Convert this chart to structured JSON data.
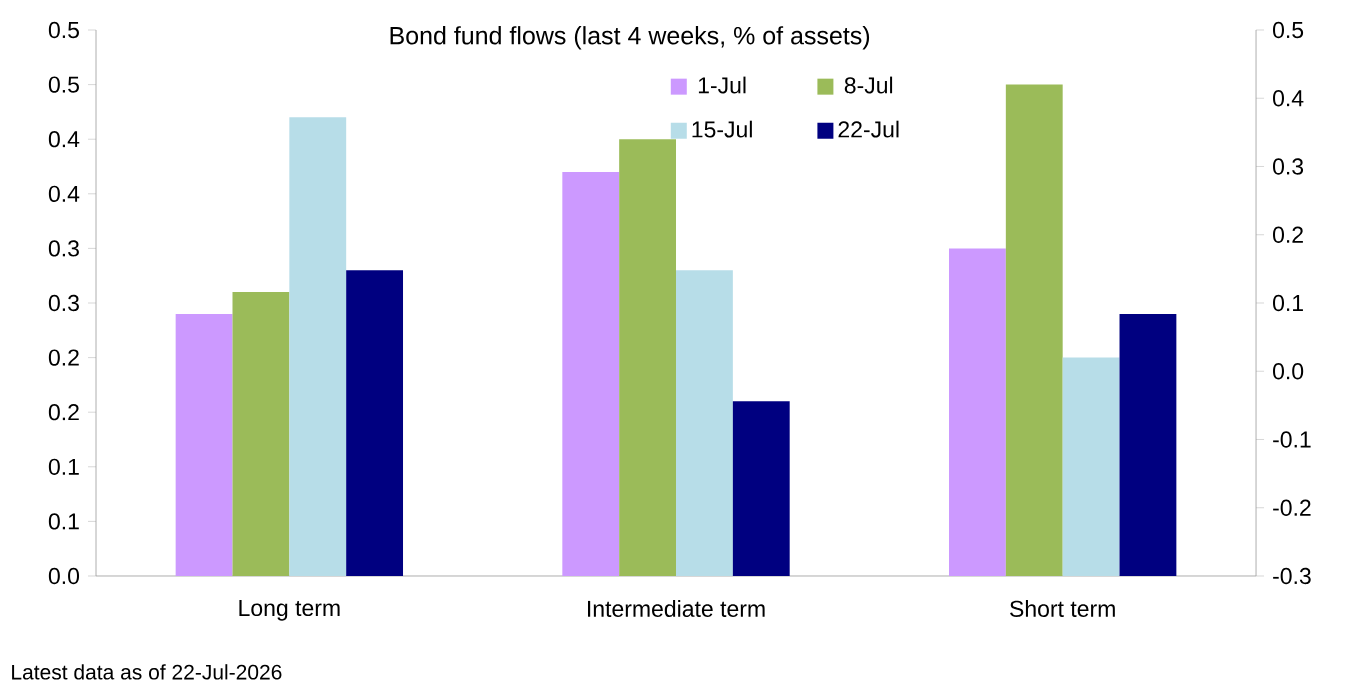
{
  "chart_data": {
    "type": "bar",
    "title": "Bond fund flows (last 4 weeks, % of assets)",
    "categories": [
      "Long term",
      "Intermediate term",
      "Short term"
    ],
    "series": [
      {
        "name": "1-Jul",
        "color": "#cc99ff",
        "values": [
          0.24,
          0.37,
          0.3
        ]
      },
      {
        "name": "8-Jul",
        "color": "#9bbb59",
        "values": [
          0.26,
          0.4,
          0.45
        ]
      },
      {
        "name": "15-Jul",
        "color": "#b7dde8",
        "values": [
          0.42,
          0.28,
          0.2
        ]
      },
      {
        "name": "22-Jul",
        "color": "#000080",
        "values": [
          0.28,
          0.16,
          0.24
        ]
      }
    ],
    "ylim": [
      0,
      0.5
    ],
    "yticks": [
      {
        "value": 0,
        "label": "0.0"
      },
      {
        "value": 0.05,
        "label": "0.1"
      },
      {
        "value": 0.1,
        "label": "0.1"
      },
      {
        "value": 0.15,
        "label": "0.2"
      },
      {
        "value": 0.2,
        "label": "0.2"
      },
      {
        "value": 0.25,
        "label": "0.3"
      },
      {
        "value": 0.3,
        "label": "0.3"
      },
      {
        "value": 0.35,
        "label": "0.4"
      },
      {
        "value": 0.4,
        "label": "0.4"
      },
      {
        "value": 0.45,
        "label": "0.5"
      },
      {
        "value": 0.5,
        "label": "0.5"
      }
    ],
    "y2lim": [
      -0.3,
      0.5
    ],
    "y2ticks": [
      {
        "value": -0.3,
        "label": "-0.3"
      },
      {
        "value": -0.2,
        "label": "-0.2"
      },
      {
        "value": -0.1,
        "label": "-0.1"
      },
      {
        "value": 0,
        "label": "0.0"
      },
      {
        "value": 0.1,
        "label": "0.1"
      },
      {
        "value": 0.2,
        "label": "0.2"
      },
      {
        "value": 0.3,
        "label": "0.3"
      },
      {
        "value": 0.4,
        "label": "0.4"
      },
      {
        "value": 0.5,
        "label": "0.5"
      }
    ],
    "legend": "top right",
    "grid": false,
    "annotations": [
      "Latest data as of 22-Jul-2026"
    ]
  }
}
